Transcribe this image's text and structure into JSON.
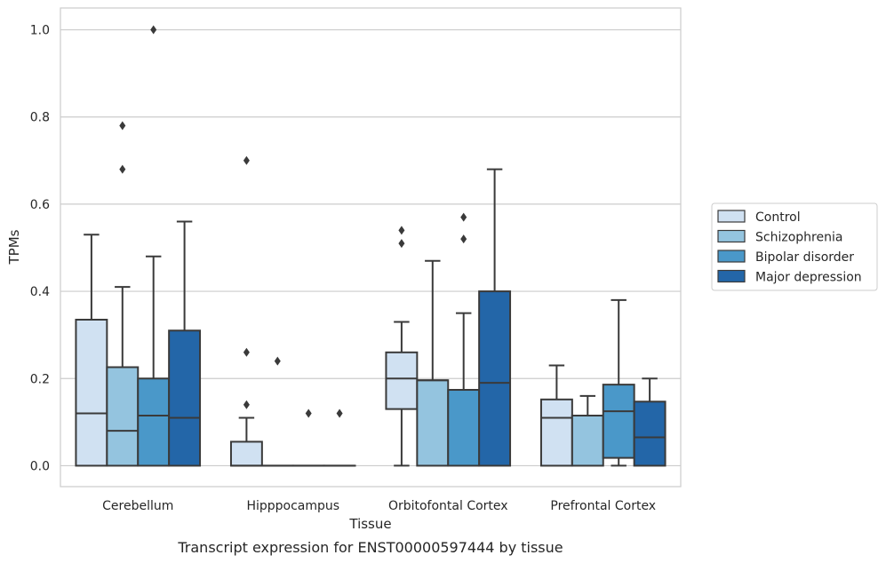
{
  "caption": "Transcript expression for ENST00000597444 by tissue",
  "chart_data": {
    "type": "box",
    "xlabel": "Tissue",
    "ylabel": "TPMs",
    "ylim": [
      -0.048,
      1.05
    ],
    "yticks": [
      0.0,
      0.2,
      0.4,
      0.6,
      0.8,
      1.0
    ],
    "ytick_labels": [
      "0.0",
      "0.2",
      "0.4",
      "0.6",
      "0.8",
      "1.0"
    ],
    "grid": true,
    "legend_position": "right",
    "categories": [
      "Cerebellum",
      "Hipppocampus",
      "Orbitofontal Cortex",
      "Prefrontal Cortex"
    ],
    "series": [
      {
        "name": "Control",
        "color": "#d0e1f2",
        "boxes": [
          {
            "whislo": 0.0,
            "q1": 0.0,
            "med": 0.12,
            "q3": 0.335,
            "whishi": 0.53,
            "fliers": []
          },
          {
            "whislo": 0.0,
            "q1": 0.0,
            "med": 0.0,
            "q3": 0.055,
            "whishi": 0.11,
            "fliers": [
              0.14,
              0.26,
              0.7
            ]
          },
          {
            "whislo": 0.0,
            "q1": 0.13,
            "med": 0.2,
            "q3": 0.26,
            "whishi": 0.33,
            "fliers": [
              0.51,
              0.54
            ]
          },
          {
            "whislo": 0.0,
            "q1": 0.0,
            "med": 0.11,
            "q3": 0.152,
            "whishi": 0.23,
            "fliers": []
          }
        ]
      },
      {
        "name": "Schizophrenia",
        "color": "#94c4df",
        "boxes": [
          {
            "whislo": 0.0,
            "q1": 0.0,
            "med": 0.08,
            "q3": 0.226,
            "whishi": 0.41,
            "fliers": [
              0.68,
              0.78
            ]
          },
          {
            "whislo": 0.0,
            "q1": 0.0,
            "med": 0.0,
            "q3": 0.0,
            "whishi": 0.0,
            "fliers": [
              0.24
            ]
          },
          {
            "whislo": 0.0,
            "q1": 0.0,
            "med": 0.196,
            "q3": 0.196,
            "whishi": 0.47,
            "fliers": []
          },
          {
            "whislo": 0.0,
            "q1": 0.0,
            "med": 0.115,
            "q3": 0.115,
            "whishi": 0.16,
            "fliers": []
          }
        ]
      },
      {
        "name": "Bipolar disorder",
        "color": "#4a98c9",
        "boxes": [
          {
            "whislo": 0.0,
            "q1": 0.0,
            "med": 0.115,
            "q3": 0.2,
            "whishi": 0.48,
            "fliers": [
              1.0
            ]
          },
          {
            "whislo": 0.0,
            "q1": 0.0,
            "med": 0.0,
            "q3": 0.0,
            "whishi": 0.0,
            "fliers": [
              0.12
            ]
          },
          {
            "whislo": 0.0,
            "q1": 0.0,
            "med": 0.174,
            "q3": 0.174,
            "whishi": 0.35,
            "fliers": [
              0.52,
              0.57
            ]
          },
          {
            "whislo": 0.0,
            "q1": 0.018,
            "med": 0.125,
            "q3": 0.186,
            "whishi": 0.38,
            "fliers": []
          }
        ]
      },
      {
        "name": "Major depression",
        "color": "#2366a8",
        "boxes": [
          {
            "whislo": 0.0,
            "q1": 0.0,
            "med": 0.11,
            "q3": 0.31,
            "whishi": 0.56,
            "fliers": []
          },
          {
            "whislo": 0.0,
            "q1": 0.0,
            "med": 0.0,
            "q3": 0.0,
            "whishi": 0.0,
            "fliers": [
              0.12
            ]
          },
          {
            "whislo": 0.0,
            "q1": 0.0,
            "med": 0.19,
            "q3": 0.4,
            "whishi": 0.68,
            "fliers": []
          },
          {
            "whislo": 0.0,
            "q1": 0.0,
            "med": 0.065,
            "q3": 0.147,
            "whishi": 0.2,
            "fliers": []
          }
        ]
      }
    ]
  }
}
